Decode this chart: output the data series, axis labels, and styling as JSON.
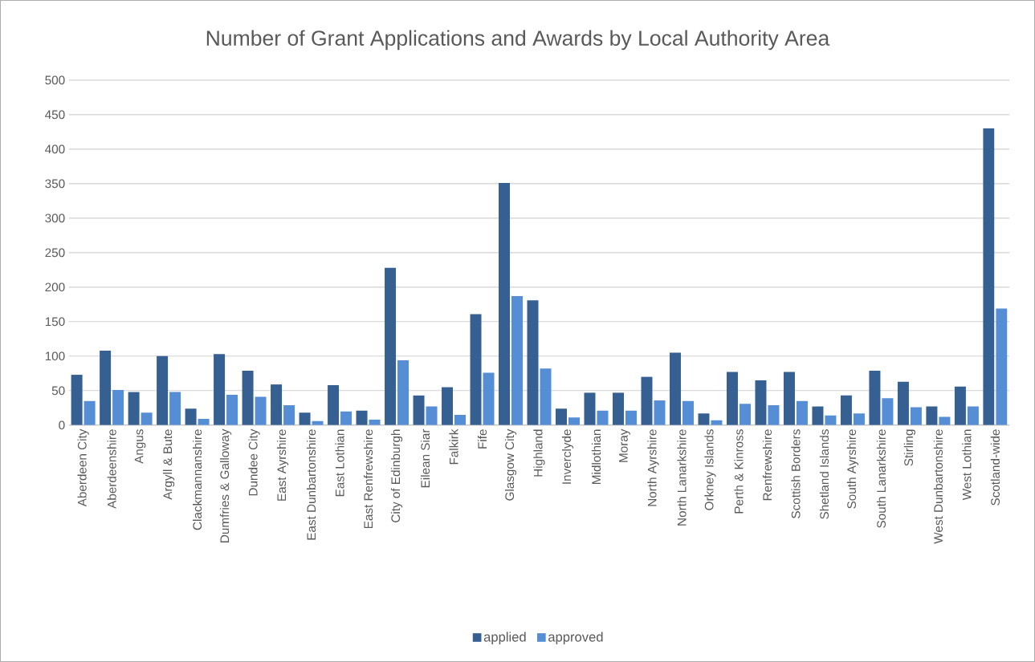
{
  "chart_data": {
    "type": "bar",
    "title": "Number of Grant Applications and Awards by Local Authority Area",
    "categories": [
      "Aberdeen City",
      "Aberdeenshire",
      "Angus",
      "Argyll & Bute",
      "Clackmannanshire",
      "Dumfries & Galloway",
      "Dundee City",
      "East Ayrshire",
      "East Dunbartonshire",
      "East Lothian",
      "East Renfrewshire",
      "City of Edinburgh",
      "Eilean Siar",
      "Falkirk",
      "Fife",
      "Glasgow City",
      "Highland",
      "Inverclyde",
      "Midlothian",
      "Moray",
      "North Ayrshire",
      "North Lanarkshire",
      "Orkney Islands",
      "Perth & Kinross",
      "Renfrewshire",
      "Scottish Borders",
      "Shetland Islands",
      "South Ayrshire",
      "South Lanarkshire",
      "Stirling",
      "West Dunbartonshire",
      "West Lothian",
      "Scotland-wide"
    ],
    "series": [
      {
        "name": "applied",
        "color": "#376092",
        "values": [
          73,
          108,
          48,
          100,
          24,
          103,
          79,
          59,
          18,
          58,
          21,
          228,
          43,
          55,
          161,
          351,
          181,
          24,
          47,
          47,
          70,
          105,
          17,
          77,
          65,
          77,
          27,
          43,
          79,
          63,
          27,
          56,
          430
        ]
      },
      {
        "name": "approved",
        "color": "#558ed5",
        "values": [
          35,
          51,
          18,
          48,
          9,
          44,
          41,
          29,
          6,
          20,
          8,
          94,
          27,
          15,
          76,
          187,
          82,
          11,
          21,
          21,
          36,
          35,
          7,
          31,
          29,
          35,
          14,
          17,
          39,
          26,
          12,
          27,
          169
        ]
      }
    ],
    "ylim": [
      0,
      500
    ],
    "yticks": [
      0,
      50,
      100,
      150,
      200,
      250,
      300,
      350,
      400,
      450,
      500
    ],
    "grid": "y",
    "legend": "bottom"
  }
}
